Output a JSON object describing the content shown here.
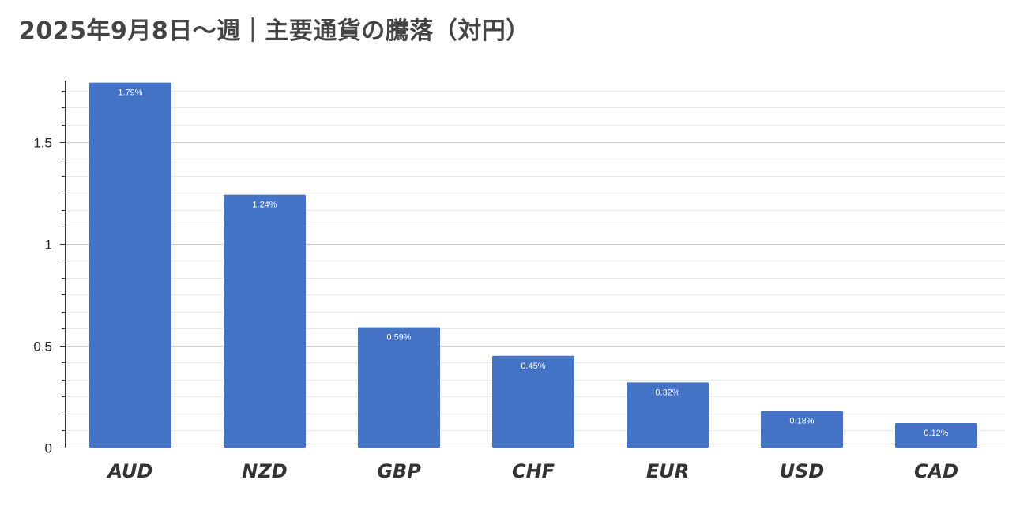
{
  "chart_data": {
    "type": "bar",
    "title": "2025年9月8日～週｜主要通貨の騰落（対円）",
    "xlabel": "",
    "ylabel": "",
    "categories": [
      "AUD",
      "NZD",
      "GBP",
      "CHF",
      "EUR",
      "USD",
      "CAD"
    ],
    "values": [
      1.79,
      1.24,
      0.59,
      0.45,
      0.32,
      0.18,
      0.12
    ],
    "data_labels": [
      "1.79%",
      "1.24%",
      "0.59%",
      "0.45%",
      "0.32%",
      "0.18%",
      "0.12%"
    ],
    "ylim": [
      0,
      1.8
    ],
    "yticks": [
      0,
      0.5,
      1,
      1.5
    ],
    "ytick_labels": [
      "0",
      "0.5",
      "1",
      "1.5"
    ],
    "minor_tick_step": 0.083333,
    "grid": true,
    "legend": "none",
    "colors": {
      "bar": "#4472C4",
      "grid_major": "#cccccc",
      "grid_minor": "#e8e8e8",
      "axis": "#333333",
      "title": "#444444"
    }
  }
}
